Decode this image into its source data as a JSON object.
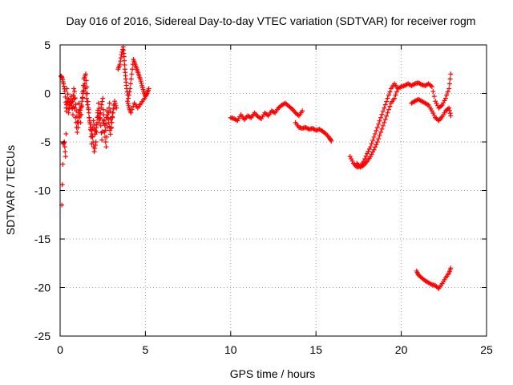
{
  "chart_data": {
    "type": "scatter",
    "title": "Day 016 of 2016, Sidereal Day-to-day VTEC variation (SDTVAR) for receiver rogm",
    "xlabel": "GPS time / hours",
    "ylabel": "SDTVAR / TECUs",
    "xlim": [
      0,
      25
    ],
    "ylim": [
      -25,
      5
    ],
    "xticks": [
      0,
      5,
      10,
      15,
      20,
      25
    ],
    "yticks": [
      -25,
      -20,
      -15,
      -10,
      -5,
      0,
      5
    ],
    "grid": true,
    "marker": "+",
    "series_color": "#ff0000",
    "segments": [
      {
        "name": "early-scatter-a",
        "x": [
          0.05,
          0.12,
          0.2,
          0.28,
          0.35,
          0.42,
          0.5,
          0.6,
          0.7,
          0.8,
          0.9,
          1.0,
          1.1,
          1.2,
          1.3,
          1.4,
          1.5,
          1.6,
          1.7,
          1.8,
          1.9,
          2.0,
          2.1,
          2.2,
          2.3,
          2.4,
          2.5,
          2.6,
          2.7,
          2.8,
          2.9,
          3.0,
          3.1,
          3.2,
          3.3
        ],
        "y": [
          1.8,
          1.6,
          1.0,
          0.2,
          -1.5,
          -0.5,
          -2.0,
          -0.8,
          -1.5,
          0.5,
          -2.5,
          -4.0,
          -1.0,
          -3.0,
          -0.5,
          1.5,
          2.0,
          0.0,
          -2.5,
          -3.5,
          -4.5,
          -6.0,
          -5.0,
          -2.0,
          -3.0,
          -1.5,
          -0.5,
          -4.0,
          -5.5,
          -2.5,
          -1.0,
          -3.5,
          -2.0,
          -0.8,
          -1.5
        ]
      },
      {
        "name": "early-scatter-b",
        "x": [
          0.1,
          0.18,
          0.25,
          0.32,
          0.4,
          0.55,
          0.65,
          0.75,
          0.85,
          0.95,
          1.05,
          1.15,
          1.25,
          1.35,
          1.45,
          1.55,
          1.65,
          1.75,
          1.85,
          1.95,
          2.05,
          2.15,
          2.25,
          2.35,
          2.45,
          2.55,
          2.65,
          2.75,
          2.85,
          2.95,
          3.05,
          3.15
        ],
        "y": [
          -11.5,
          -5.2,
          -5.0,
          -6.5,
          0.5,
          -1.2,
          -0.3,
          -2.2,
          0.2,
          -1.8,
          -3.5,
          -2.0,
          -1.2,
          0.0,
          1.0,
          -0.5,
          -1.5,
          -3.0,
          -5.2,
          -2.8,
          -4.2,
          -3.2,
          -1.0,
          -2.6,
          -4.8,
          -2.2,
          -3.8,
          -1.8,
          -3.0,
          -4.2,
          -2.4,
          -1.2
        ]
      },
      {
        "name": "early-scatter-c",
        "x": [
          3.4,
          3.5,
          3.6,
          3.7,
          3.75,
          3.8,
          3.85,
          3.9,
          4.0,
          4.1,
          4.2,
          4.3,
          4.4,
          4.5,
          4.6,
          4.7,
          4.8,
          4.9,
          5.0,
          5.1,
          5.2,
          4.95,
          4.75,
          4.55,
          4.35,
          4.15,
          4.05,
          3.95
        ],
        "y": [
          2.5,
          3.0,
          4.0,
          4.8,
          3.8,
          2.5,
          1.5,
          0.5,
          -0.5,
          0.5,
          2.0,
          3.5,
          3.0,
          2.5,
          2.0,
          1.5,
          0.8,
          0.2,
          -0.3,
          0.0,
          0.5,
          -0.5,
          -1.0,
          -1.5,
          -1.0,
          -2.0,
          -1.5,
          -0.8
        ]
      },
      {
        "name": "morning-band-1",
        "x": [
          10.0,
          10.2,
          10.4,
          10.6,
          10.8,
          11.0,
          11.2,
          11.4,
          11.6,
          11.8,
          12.0,
          12.2,
          12.4,
          12.6,
          12.8,
          13.0,
          13.2,
          13.4,
          13.6,
          13.8,
          14.0,
          14.2
        ],
        "y": [
          -2.5,
          -2.6,
          -2.8,
          -2.2,
          -2.7,
          -2.3,
          -2.5,
          -2.0,
          -2.4,
          -2.6,
          -2.0,
          -2.3,
          -1.8,
          -2.0,
          -1.5,
          -1.2,
          -1.0,
          -1.3,
          -1.6,
          -2.0,
          -2.3,
          -1.8
        ]
      },
      {
        "name": "morning-band-2",
        "x": [
          13.8,
          14.0,
          14.2,
          14.4,
          14.6,
          14.8,
          15.0,
          15.2,
          15.4,
          15.6,
          15.8,
          15.9
        ],
        "y": [
          -3.0,
          -3.5,
          -3.6,
          -3.5,
          -3.7,
          -3.6,
          -3.8,
          -3.7,
          -3.9,
          -4.2,
          -4.6,
          -4.9
        ]
      },
      {
        "name": "evening-loop",
        "x": [
          17.0,
          17.2,
          17.4,
          17.6,
          17.8,
          18.0,
          18.2,
          18.4,
          18.6,
          18.8,
          19.0,
          19.2,
          19.4,
          19.6,
          19.8,
          19.6,
          19.4,
          19.2,
          19.0,
          18.8,
          18.6,
          18.4,
          18.2,
          18.0,
          17.8,
          17.6,
          17.4
        ],
        "y": [
          -6.5,
          -7.2,
          -7.6,
          -7.5,
          -7.0,
          -6.2,
          -5.5,
          -4.5,
          -3.5,
          -2.5,
          -1.5,
          -0.5,
          0.5,
          1.0,
          0.5,
          -0.5,
          -1.0,
          -2.0,
          -3.0,
          -4.0,
          -5.0,
          -5.8,
          -6.5,
          -7.0,
          -7.4,
          -7.6,
          -7.2
        ]
      },
      {
        "name": "evening-plateau",
        "x": [
          19.8,
          20.0,
          20.2,
          20.4,
          20.6,
          20.8,
          21.0,
          21.2,
          21.4,
          21.6,
          21.8,
          22.0,
          22.2,
          22.4,
          22.6,
          22.8,
          22.9
        ],
        "y": [
          0.5,
          0.7,
          0.8,
          1.0,
          0.8,
          1.0,
          1.1,
          0.9,
          0.8,
          1.0,
          0.7,
          -0.8,
          -1.5,
          -1.2,
          -0.5,
          0.5,
          2.0
        ]
      },
      {
        "name": "evening-dip",
        "x": [
          20.6,
          20.8,
          21.0,
          21.2,
          21.4,
          21.6,
          21.8,
          22.0,
          22.2,
          22.4,
          22.6,
          22.8,
          22.9
        ],
        "y": [
          -1.0,
          -0.8,
          -0.6,
          -0.8,
          -1.0,
          -1.2,
          -1.8,
          -2.5,
          -2.8,
          -2.4,
          -1.8,
          -1.5,
          -2.3
        ]
      },
      {
        "name": "offset-segment",
        "x": [
          20.9,
          21.0,
          21.2,
          21.4,
          21.6,
          21.8,
          22.0,
          22.2,
          22.4,
          22.6,
          22.8,
          22.9
        ],
        "y": [
          -18.3,
          -18.7,
          -19.0,
          -19.3,
          -19.5,
          -19.7,
          -19.8,
          -20.1,
          -19.6,
          -19.0,
          -18.5,
          -18.0
        ]
      }
    ]
  }
}
